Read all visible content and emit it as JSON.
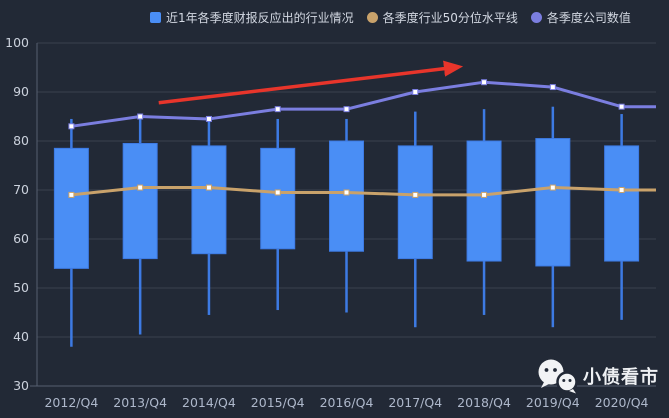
{
  "chart_data": {
    "type": "candlestick",
    "title": "",
    "xlabel": "",
    "ylabel": "",
    "ylim": [
      30,
      100
    ],
    "y_ticks": [
      100,
      90,
      80,
      70,
      60,
      50,
      40,
      30
    ],
    "grid": true,
    "legend_position": "top",
    "categories": [
      "2012/Q4",
      "2013/Q4",
      "2014/Q4",
      "2015/Q4",
      "2016/Q4",
      "2017/Q4",
      "2018/Q4",
      "2019/Q4",
      "2020/Q4"
    ],
    "series": [
      {
        "name": "近1年各季度财报反应出的行业情况",
        "type": "boxwhisker",
        "marker": "square",
        "color": "#4a8ef5",
        "border_color": "#3d7ae3",
        "values_low_q1_q3_high": [
          [
            38,
            54,
            78.5,
            84.5
          ],
          [
            40.5,
            56,
            79.5,
            84.5
          ],
          [
            44.5,
            57,
            79,
            85
          ],
          [
            45.5,
            58,
            78.5,
            84.5
          ],
          [
            45,
            57.5,
            80,
            84.5
          ],
          [
            42,
            56,
            79,
            86
          ],
          [
            44.5,
            55.5,
            80,
            86.5
          ],
          [
            42,
            54.5,
            80.5,
            87
          ],
          [
            43.5,
            55.5,
            79,
            85.5
          ]
        ]
      },
      {
        "name": "各季度行业50分位水平线",
        "type": "line",
        "marker": "circle",
        "color": "#c9a26b",
        "extends_to_right_edge": true,
        "values": [
          69,
          70.5,
          70.5,
          69.5,
          69.5,
          69,
          69,
          70.5,
          70
        ]
      },
      {
        "name": "各季度公司数值",
        "type": "line",
        "marker": "circle",
        "color": "#7b7ee0",
        "extends_to_right_edge": true,
        "values": [
          83,
          85,
          84.5,
          86.5,
          86.5,
          90,
          92,
          91,
          87
        ]
      }
    ],
    "annotation_arrow": {
      "color": "#e8352b",
      "from": {
        "category_index": 1.27,
        "value": 87.8
      },
      "to": {
        "category_index": 5.62,
        "value": 95.1
      }
    }
  },
  "watermark": {
    "text": "小债看市",
    "icon": "wechat-icon"
  },
  "theme": {
    "background": "#222936",
    "grid_line": "#39414f",
    "axis_line": "#566070",
    "y_label_color": "#ccd2dd",
    "x_label_color": "#aeb8cb",
    "legend_text_color": "#d3d8e2",
    "point_fill": "#ffffff"
  }
}
